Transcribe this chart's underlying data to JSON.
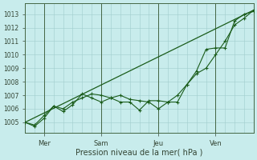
{
  "background_color": "#c8ecec",
  "grid_color": "#a0cccc",
  "line_color": "#1a5c1a",
  "spine_color": "#446644",
  "xlabel": "Pression niveau de la mer( hPa )",
  "xlabel_fontsize": 7,
  "ylim": [
    1004.2,
    1013.8
  ],
  "yticks": [
    1005,
    1006,
    1007,
    1008,
    1009,
    1010,
    1011,
    1012,
    1013
  ],
  "ytick_fontsize": 5.5,
  "xtick_fontsize": 6,
  "xlim": [
    0,
    24
  ],
  "x_tick_labels": [
    "Mer",
    "Sam",
    "Jeu",
    "Ven"
  ],
  "x_tick_positions": [
    2,
    8,
    14,
    20
  ],
  "x_vline_positions": [
    2,
    8,
    14,
    20
  ],
  "series_straight": {
    "x": [
      0,
      24
    ],
    "y": [
      1005.0,
      1013.3
    ]
  },
  "series_zigzag": {
    "x": [
      0,
      1,
      2,
      3,
      4,
      5,
      6,
      7,
      8,
      9,
      10,
      11,
      12,
      13,
      14,
      15,
      16,
      17,
      18,
      19,
      20,
      21,
      22,
      23,
      24
    ],
    "y": [
      1005.0,
      1004.8,
      1005.5,
      1006.2,
      1006.0,
      1006.5,
      1006.8,
      1007.1,
      1007.0,
      1006.8,
      1007.0,
      1006.7,
      1006.6,
      1006.5,
      1006.0,
      1006.5,
      1007.0,
      1007.8,
      1008.6,
      1009.0,
      1010.0,
      1011.0,
      1012.2,
      1012.7,
      1013.3
    ]
  },
  "series_lower": {
    "x": [
      0,
      1,
      2,
      3,
      4,
      5,
      6,
      7,
      8,
      9,
      10,
      11,
      12,
      13,
      14,
      15,
      16,
      17,
      18,
      19,
      20,
      21,
      22,
      23,
      24
    ],
    "y": [
      1005.0,
      1004.7,
      1005.3,
      1006.2,
      1005.8,
      1006.3,
      1007.1,
      1006.8,
      1006.5,
      1006.8,
      1006.5,
      1006.5,
      1005.9,
      1006.6,
      1006.6,
      1006.5,
      1006.5,
      1007.8,
      1008.8,
      1010.4,
      1010.5,
      1010.5,
      1012.5,
      1013.0,
      1013.2
    ]
  }
}
